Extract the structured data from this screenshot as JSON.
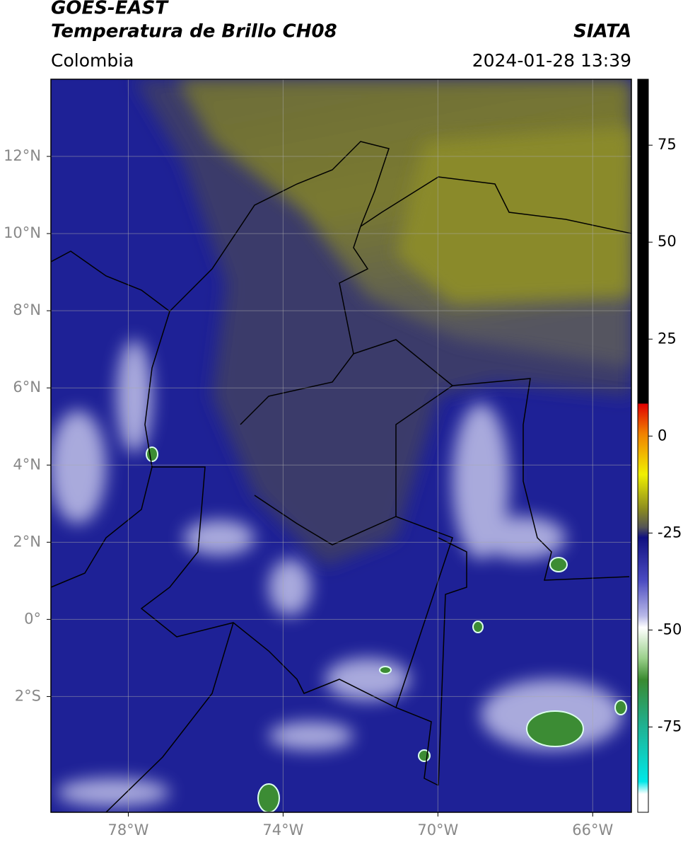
{
  "header": {
    "title": "GOES-EAST",
    "subtitle": "Temperatura de Brillo CH08",
    "source": "SIATA",
    "region": "Colombia",
    "datetime": "2024-01-28 13:39"
  },
  "map": {
    "xlim": [
      -80,
      -65
    ],
    "ylim": [
      -5,
      14
    ],
    "grid": true,
    "xticks": [
      {
        "value": -78,
        "label": "78°W"
      },
      {
        "value": -74,
        "label": "74°W"
      },
      {
        "value": -70,
        "label": "70°W"
      },
      {
        "value": -66,
        "label": "66°W"
      }
    ],
    "yticks": [
      {
        "value": 12,
        "label": "12°N"
      },
      {
        "value": 10,
        "label": "10°N"
      },
      {
        "value": 8,
        "label": "8°N"
      },
      {
        "value": 6,
        "label": "6°N"
      },
      {
        "value": 4,
        "label": "4°N"
      },
      {
        "value": 2,
        "label": "2°N"
      },
      {
        "value": 0,
        "label": "0°"
      },
      {
        "value": -2,
        "label": "2°S"
      }
    ]
  },
  "colorbar": {
    "lim": [
      -97,
      92
    ],
    "ticks": [
      75,
      50,
      25,
      0,
      -25,
      -50,
      -75
    ]
  }
}
